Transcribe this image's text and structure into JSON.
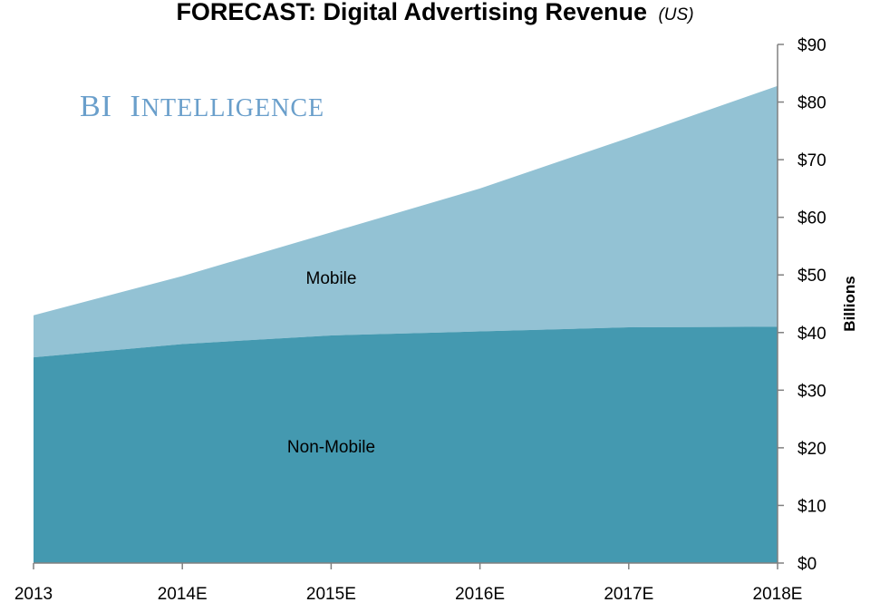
{
  "title": "FORECAST: Digital Advertising Revenue",
  "subtitle": "(US)",
  "watermark": {
    "initial1": "BI",
    "initial2": "I",
    "rest": "NTELLIGENCE"
  },
  "colors": {
    "mobile": "#93c2d4",
    "non_mobile": "#4499b0",
    "axis": "#808080",
    "watermark": "#6a9fcb"
  },
  "chart_data": {
    "type": "area",
    "stacked": true,
    "categories": [
      "2013",
      "2014E",
      "2015E",
      "2016E",
      "2017E",
      "2018E"
    ],
    "series": [
      {
        "name": "Non-Mobile",
        "values": [
          35.7,
          38.0,
          39.5,
          40.2,
          40.9,
          41.0
        ]
      },
      {
        "name": "Mobile",
        "values": [
          7.3,
          11.8,
          17.9,
          24.8,
          32.9,
          41.8
        ]
      }
    ],
    "ylabel": "Billions",
    "ylim": [
      0,
      90
    ],
    "yticks": [
      "$0",
      "$10",
      "$20",
      "$30",
      "$40",
      "$50",
      "$60",
      "$70",
      "$80",
      "$90"
    ],
    "y_axis_side": "right",
    "grid": false,
    "legend": "inline area labels"
  }
}
